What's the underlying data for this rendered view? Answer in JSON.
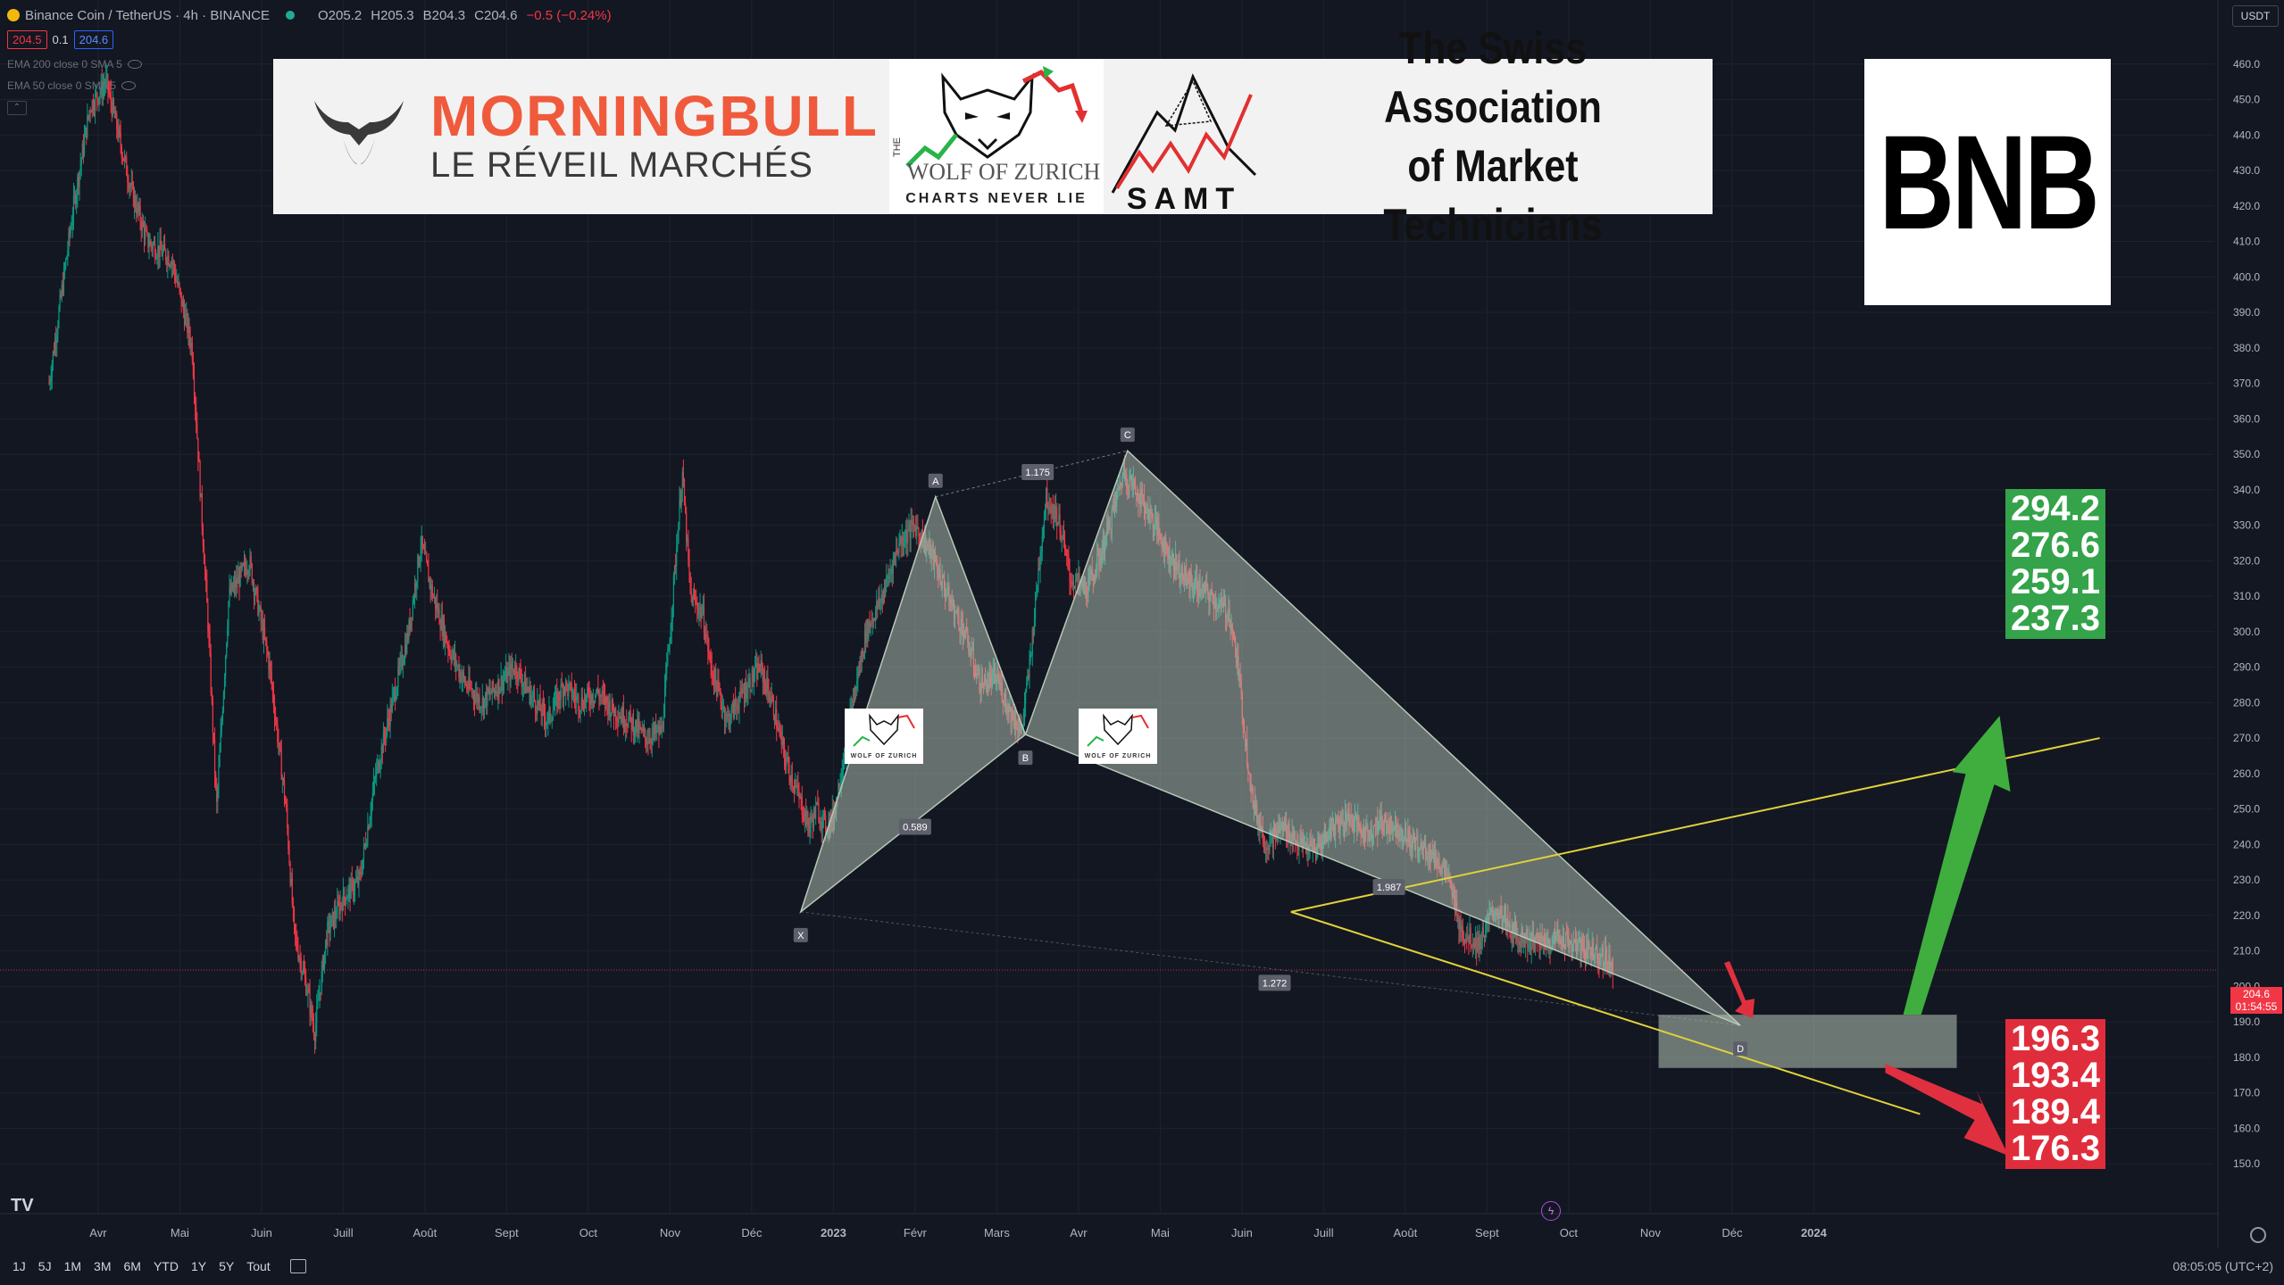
{
  "header": {
    "symbol": "Binance Coin / TetherUS · 4h · BINANCE",
    "open": "O205.2",
    "high": "H205.3",
    "low": "B204.3",
    "close": "C204.6",
    "change": "−0.5 (−0.24%)",
    "bid": "204.5",
    "spread": "0.1",
    "ask": "204.6",
    "ema200": "EMA 200 close 0 SMA 5",
    "ema50": "EMA 50 close 0 SMA 5",
    "currency": "USDT"
  },
  "banner": {
    "mb_title": "MORNINGBULL",
    "mb_sub": "LE RÉVEIL MARCHÉS",
    "wolf_top": "THE",
    "wolf_name": "WOLF OF ZURICH",
    "wolf_sub": "CHARTS NEVER LIE",
    "samt_abbr": "SAMT",
    "samt_line1": "The Swiss Association",
    "samt_line2": "of Market Technicians",
    "bnb": "BNB"
  },
  "targets_up": [
    "294.2",
    "276.6",
    "259.1",
    "237.3"
  ],
  "targets_down": [
    "196.3",
    "193.4",
    "189.4",
    "176.3"
  ],
  "price_tag": {
    "price": "204.6",
    "countdown": "01:54:55"
  },
  "footer": {
    "timeframes": [
      "1J",
      "5J",
      "1M",
      "3M",
      "6M",
      "YTD",
      "1Y",
      "5Y",
      "Tout"
    ],
    "clock": "08:05:05 (UTC+2)"
  },
  "colors": {
    "up": "#089981",
    "down": "#f23645",
    "pattern": "#b7c7b7",
    "trend": "#e0d23a",
    "arrow_up": "#3fae3f",
    "arrow_down": "#e0303f"
  },
  "chart_data": {
    "type": "candlestick",
    "symbol": "BNBUSDT",
    "interval": "4h",
    "ylim": [
      146,
      468
    ],
    "y_ticks": [
      460,
      450,
      440,
      430,
      420,
      410,
      400,
      390,
      380,
      370,
      360,
      350,
      340,
      330,
      320,
      310,
      300,
      290,
      280,
      270,
      260,
      250,
      240,
      230,
      220,
      210,
      200,
      190,
      180,
      170,
      160,
      150
    ],
    "x_ticks": [
      {
        "label": "Avr",
        "t": 0.6
      },
      {
        "label": "Mai",
        "t": 1.6
      },
      {
        "label": "Juin",
        "t": 2.6
      },
      {
        "label": "Juill",
        "t": 3.6
      },
      {
        "label": "Août",
        "t": 4.6
      },
      {
        "label": "Sept",
        "t": 5.6
      },
      {
        "label": "Oct",
        "t": 6.6
      },
      {
        "label": "Nov",
        "t": 7.6
      },
      {
        "label": "Déc",
        "t": 8.6
      },
      {
        "label": "2023",
        "t": 9.6
      },
      {
        "label": "Févr",
        "t": 10.6
      },
      {
        "label": "Mars",
        "t": 11.6
      },
      {
        "label": "Avr",
        "t": 12.6
      },
      {
        "label": "Mai",
        "t": 13.6
      },
      {
        "label": "Juin",
        "t": 14.6
      },
      {
        "label": "Juill",
        "t": 15.6
      },
      {
        "label": "Août",
        "t": 16.6
      },
      {
        "label": "Sept",
        "t": 17.6
      },
      {
        "label": "Oct",
        "t": 18.6
      },
      {
        "label": "Nov",
        "t": 19.6
      },
      {
        "label": "Déc",
        "t": 20.6
      },
      {
        "label": "2024",
        "t": 21.6
      }
    ],
    "price_path": [
      [
        0,
        370
      ],
      [
        0.15,
        395
      ],
      [
        0.3,
        420
      ],
      [
        0.5,
        448
      ],
      [
        0.7,
        455
      ],
      [
        0.85,
        440
      ],
      [
        1.0,
        425
      ],
      [
        1.2,
        410
      ],
      [
        1.5,
        405
      ],
      [
        1.75,
        380
      ],
      [
        1.95,
        300
      ],
      [
        2.05,
        250
      ],
      [
        2.2,
        310
      ],
      [
        2.45,
        320
      ],
      [
        2.7,
        290
      ],
      [
        2.9,
        250
      ],
      [
        3.0,
        215
      ],
      [
        3.15,
        200
      ],
      [
        3.25,
        187
      ],
      [
        3.4,
        215
      ],
      [
        3.6,
        225
      ],
      [
        3.8,
        230
      ],
      [
        4.0,
        260
      ],
      [
        4.2,
        280
      ],
      [
        4.4,
        300
      ],
      [
        4.55,
        325
      ],
      [
        4.7,
        310
      ],
      [
        4.9,
        295
      ],
      [
        5.1,
        285
      ],
      [
        5.3,
        280
      ],
      [
        5.5,
        285
      ],
      [
        5.7,
        290
      ],
      [
        5.9,
        282
      ],
      [
        6.1,
        275
      ],
      [
        6.3,
        285
      ],
      [
        6.5,
        280
      ],
      [
        6.7,
        283
      ],
      [
        6.9,
        278
      ],
      [
        7.1,
        275
      ],
      [
        7.3,
        270
      ],
      [
        7.5,
        272
      ],
      [
        7.6,
        300
      ],
      [
        7.75,
        345
      ],
      [
        7.85,
        310
      ],
      [
        8.0,
        305
      ],
      [
        8.1,
        290
      ],
      [
        8.3,
        275
      ],
      [
        8.5,
        283
      ],
      [
        8.7,
        290
      ],
      [
        8.85,
        280
      ],
      [
        9.0,
        265
      ],
      [
        9.15,
        255
      ],
      [
        9.3,
        245
      ],
      [
        9.4,
        250
      ],
      [
        9.5,
        245
      ],
      [
        9.6,
        248
      ],
      [
        9.8,
        275
      ],
      [
        10.0,
        300
      ],
      [
        10.2,
        310
      ],
      [
        10.4,
        325
      ],
      [
        10.6,
        330
      ],
      [
        10.8,
        322
      ],
      [
        11.0,
        310
      ],
      [
        11.2,
        300
      ],
      [
        11.4,
        285
      ],
      [
        11.6,
        287
      ],
      [
        11.75,
        278
      ],
      [
        11.9,
        272
      ],
      [
        12.0,
        290
      ],
      [
        12.1,
        315
      ],
      [
        12.2,
        338
      ],
      [
        12.35,
        332
      ],
      [
        12.5,
        315
      ],
      [
        12.7,
        312
      ],
      [
        12.85,
        320
      ],
      [
        13.0,
        332
      ],
      [
        13.15,
        345
      ],
      [
        13.3,
        340
      ],
      [
        13.5,
        332
      ],
      [
        13.7,
        322
      ],
      [
        13.9,
        315
      ],
      [
        14.1,
        312
      ],
      [
        14.3,
        308
      ],
      [
        14.45,
        305
      ],
      [
        14.55,
        290
      ],
      [
        14.65,
        268
      ],
      [
        14.75,
        250
      ],
      [
        14.9,
        240
      ],
      [
        15.1,
        245
      ],
      [
        15.3,
        240
      ],
      [
        15.5,
        238
      ],
      [
        15.7,
        245
      ],
      [
        15.9,
        248
      ],
      [
        16.1,
        243
      ],
      [
        16.3,
        246
      ],
      [
        16.5,
        245
      ],
      [
        16.7,
        240
      ],
      [
        16.9,
        238
      ],
      [
        17.1,
        232
      ],
      [
        17.3,
        215
      ],
      [
        17.5,
        212
      ],
      [
        17.7,
        222
      ],
      [
        17.9,
        215
      ],
      [
        18.1,
        213
      ],
      [
        18.3,
        212
      ],
      [
        18.5,
        214
      ],
      [
        18.7,
        211
      ],
      [
        18.9,
        210
      ],
      [
        19.05,
        208
      ],
      [
        19.15,
        205
      ]
    ],
    "harmonic_pattern": {
      "points": [
        {
          "name": "X",
          "t": 9.2,
          "price": 221
        },
        {
          "name": "A",
          "t": 10.85,
          "price": 338
        },
        {
          "name": "B",
          "t": 11.95,
          "price": 271
        },
        {
          "name": "C",
          "t": 13.2,
          "price": 351
        },
        {
          "name": "D",
          "t": 20.7,
          "price": 189
        }
      ],
      "ratios": [
        {
          "label": "0.589",
          "t": 10.6,
          "price": 245
        },
        {
          "label": "1.175",
          "t": 12.1,
          "price": 345
        },
        {
          "label": "1.987",
          "t": 16.4,
          "price": 228
        },
        {
          "label": "1.272",
          "t": 15.0,
          "price": 201
        }
      ]
    },
    "zone": {
      "t1": 19.7,
      "t2": 23.35,
      "low": 177,
      "high": 192
    },
    "trend_lines": [
      {
        "t1": 15.2,
        "p1": 221,
        "t2": 25.1,
        "p2": 270
      },
      {
        "t1": 15.2,
        "p1": 221,
        "t2": 22.9,
        "p2": 164
      }
    ],
    "last_price": 204.6
  }
}
